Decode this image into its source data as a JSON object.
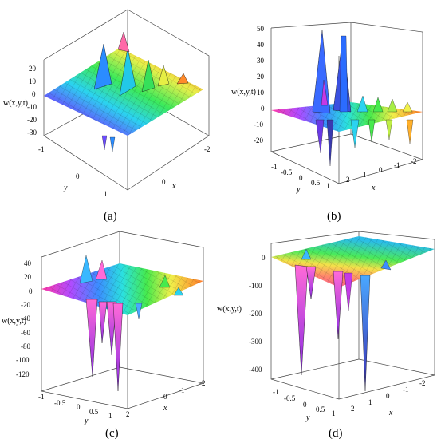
{
  "figure": {
    "panels": [
      {
        "caption": "(a)",
        "z_label": "w(x,y,t)"
      },
      {
        "caption": "(b)",
        "z_label": "w(x,y,t)"
      },
      {
        "caption": "(c)",
        "z_label": "w(x,y,t)"
      },
      {
        "caption": "(d)",
        "z_label": "w(x,y,t)"
      }
    ]
  },
  "chart_data": [
    {
      "type": "surface",
      "title": "(a)",
      "zlabel": "w(x,y,t)",
      "xlabel": "x",
      "ylabel": "y",
      "xlim": [
        -2,
        2
      ],
      "ylim": [
        -1,
        1
      ],
      "zlim": [
        -30,
        20
      ],
      "x_ticks": [
        "0",
        "-2"
      ],
      "y_ticks": [
        "-1",
        "0",
        "1"
      ],
      "z_ticks": [
        "20",
        "10",
        "0",
        "-10",
        "-20",
        "-30"
      ]
    },
    {
      "type": "surface",
      "title": "(b)",
      "zlabel": "w(x,y,t)",
      "xlabel": "x",
      "ylabel": "y",
      "xlim": [
        -2,
        2
      ],
      "ylim": [
        -1,
        2
      ],
      "zlim": [
        -20,
        50
      ],
      "x_ticks": [
        "2",
        "1",
        "0",
        "-1",
        "-2"
      ],
      "y_ticks": [
        "-1",
        "-0.5",
        "0",
        "0.5",
        "1"
      ],
      "z_ticks": [
        "50",
        "40",
        "30",
        "20",
        "10",
        "0",
        "-10",
        "-20"
      ]
    },
    {
      "type": "surface",
      "title": "(c)",
      "zlabel": "w(x,y,t)",
      "xlabel": "x",
      "ylabel": "y",
      "xlim": [
        -2,
        2
      ],
      "ylim": [
        -1,
        2
      ],
      "zlim": [
        -120,
        40
      ],
      "x_ticks": [
        "0",
        "-1",
        "-2"
      ],
      "y_ticks": [
        "-1",
        "-0.5",
        "0",
        "0.5",
        "1",
        "2"
      ],
      "z_ticks": [
        "40",
        "20",
        "0",
        "-20",
        "-40",
        "-60",
        "-80",
        "-100",
        "-120"
      ]
    },
    {
      "type": "surface",
      "title": "(d)",
      "zlabel": "w(x,y,t)",
      "xlabel": "x",
      "ylabel": "y",
      "xlim": [
        -2,
        2
      ],
      "ylim": [
        -1,
        2
      ],
      "zlim": [
        -400,
        0
      ],
      "x_ticks": [
        "2",
        "1",
        "0",
        "-1",
        "-2"
      ],
      "y_ticks": [
        "-1",
        "-0.5",
        "0",
        "0.5",
        "1"
      ],
      "z_ticks": [
        "0",
        "-100",
        "-200",
        "-300",
        "-400"
      ]
    }
  ]
}
